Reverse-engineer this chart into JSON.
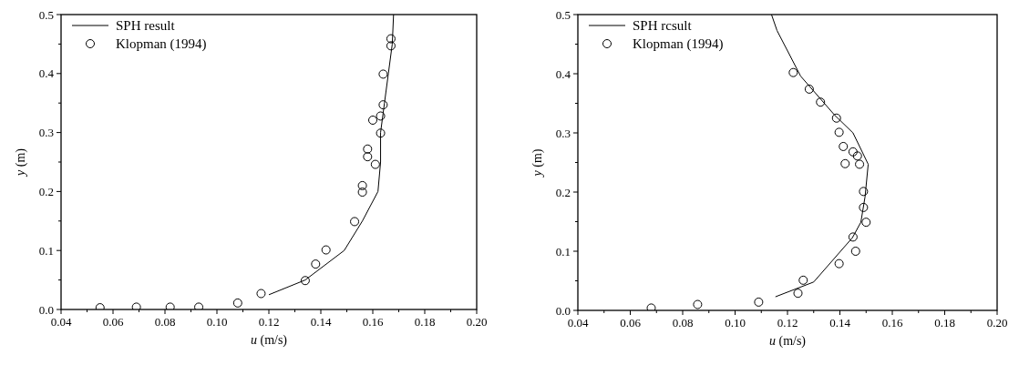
{
  "chart_data": [
    {
      "type": "line",
      "xlabel": "u (m/s)",
      "ylabel": "y (m)",
      "xlim": [
        0.04,
        0.2
      ],
      "ylim": [
        0,
        0.5
      ],
      "xticks": [
        {
          "value": 0.04,
          "label": "0.04"
        },
        {
          "value": 0.05,
          "label": null
        },
        {
          "value": 0.06,
          "label": "0.06"
        },
        {
          "value": 0.07,
          "label": null
        },
        {
          "value": 0.08,
          "label": "0.08"
        },
        {
          "value": 0.09,
          "label": null
        },
        {
          "value": 0.1,
          "label": "0.10"
        },
        {
          "value": 0.11,
          "label": null
        },
        {
          "value": 0.12,
          "label": "0.12"
        },
        {
          "value": 0.13,
          "label": null
        },
        {
          "value": 0.14,
          "label": "0.14"
        },
        {
          "value": 0.15,
          "label": null
        },
        {
          "value": 0.16,
          "label": "0.16"
        },
        {
          "value": 0.17,
          "label": null
        },
        {
          "value": 0.18,
          "label": "0.18"
        },
        {
          "value": 0.19,
          "label": null
        },
        {
          "value": 0.2,
          "label": "0.20"
        }
      ],
      "yticks": [
        {
          "value": 0,
          "label": "0.0"
        },
        {
          "value": 0.05,
          "label": null
        },
        {
          "value": 0.1,
          "label": "0.1"
        },
        {
          "value": 0.15,
          "label": null
        },
        {
          "value": 0.2,
          "label": "0.2"
        },
        {
          "value": 0.25,
          "label": null
        },
        {
          "value": 0.3,
          "label": "0.3"
        },
        {
          "value": 0.35,
          "label": null
        },
        {
          "value": 0.4,
          "label": "0.4"
        },
        {
          "value": 0.45,
          "label": null
        },
        {
          "value": 0.5,
          "label": "0.5"
        }
      ],
      "legend": "top left",
      "grid": false,
      "series": [
        {
          "name": "SPH result",
          "color": "#000000",
          "line_style": "solid",
          "x": [
            0.12,
            0.134,
            0.149,
            0.156,
            0.162,
            0.163,
            0.163,
            0.1645,
            0.166,
            0.1675,
            0.168
          ],
          "values": [
            0.025,
            0.05,
            0.1,
            0.15,
            0.2,
            0.25,
            0.3,
            0.35,
            0.4,
            0.45,
            0.5
          ]
        },
        {
          "name": "Klopman (1994)",
          "type": "scatter",
          "color": "#000000",
          "marker": "circle",
          "x": [
            0.055,
            0.069,
            0.082,
            0.093,
            0.108,
            0.117,
            0.134,
            0.138,
            0.142,
            0.153,
            0.156,
            0.156,
            0.158,
            0.158,
            0.161,
            0.163,
            0.16,
            0.163,
            0.164,
            0.164,
            0.167,
            0.167
          ],
          "values": [
            0.003,
            0.004,
            0.004,
            0.004,
            0.011,
            0.027,
            0.049,
            0.077,
            0.101,
            0.149,
            0.199,
            0.21,
            0.259,
            0.272,
            0.246,
            0.299,
            0.321,
            0.328,
            0.347,
            0.399,
            0.447,
            0.459
          ]
        }
      ]
    },
    {
      "type": "line",
      "xlabel": "u (m/s)",
      "ylabel": "y (m)",
      "xlim": [
        0.04,
        0.2
      ],
      "ylim": [
        0,
        0.5
      ],
      "xticks": [
        {
          "value": 0.04,
          "label": "0.04"
        },
        {
          "value": 0.05,
          "label": null
        },
        {
          "value": 0.06,
          "label": "0.06"
        },
        {
          "value": 0.07,
          "label": null
        },
        {
          "value": 0.08,
          "label": "0.08"
        },
        {
          "value": 0.09,
          "label": null
        },
        {
          "value": 0.1,
          "label": "0.10"
        },
        {
          "value": 0.11,
          "label": null
        },
        {
          "value": 0.12,
          "label": "0.12"
        },
        {
          "value": 0.13,
          "label": null
        },
        {
          "value": 0.14,
          "label": "0.14"
        },
        {
          "value": 0.15,
          "label": null
        },
        {
          "value": 0.16,
          "label": "0.16"
        },
        {
          "value": 0.17,
          "label": null
        },
        {
          "value": 0.18,
          "label": "0.18"
        },
        {
          "value": 0.19,
          "label": null
        },
        {
          "value": 0.2,
          "label": "0.20"
        }
      ],
      "yticks": [
        {
          "value": 0,
          "label": "0.0"
        },
        {
          "value": 0.05,
          "label": null
        },
        {
          "value": 0.1,
          "label": "0.1"
        },
        {
          "value": 0.15,
          "label": null
        },
        {
          "value": 0.2,
          "label": "0.2"
        },
        {
          "value": 0.25,
          "label": null
        },
        {
          "value": 0.3,
          "label": "0.3"
        },
        {
          "value": 0.35,
          "label": null
        },
        {
          "value": 0.4,
          "label": "0.4"
        },
        {
          "value": 0.45,
          "label": null
        },
        {
          "value": 0.5,
          "label": "0.5"
        }
      ],
      "legend": "top left",
      "grid": false,
      "series": [
        {
          "name": "SPH rcsult",
          "color": "#000000",
          "line_style": "solid",
          "x": [
            0.1154,
            0.13,
            0.1448,
            0.148,
            0.1496,
            0.1508,
            0.145,
            0.138,
            0.125,
            0.116,
            0.1139
          ],
          "values": [
            0.023,
            0.048,
            0.123,
            0.149,
            0.192,
            0.247,
            0.3,
            0.33,
            0.396,
            0.473,
            0.5
          ]
        },
        {
          "name": "Klopman (1994)",
          "type": "scatter",
          "color": "#000000",
          "marker": "circle",
          "x": [
            0.068,
            0.0857,
            0.109,
            0.124,
            0.126,
            0.1397,
            0.146,
            0.145,
            0.15,
            0.149,
            0.149,
            0.142,
            0.1475,
            0.1467,
            0.145,
            0.1413,
            0.1397,
            0.1387,
            0.1326,
            0.1283,
            0.1222
          ],
          "values": [
            0.004,
            0.01,
            0.014,
            0.029,
            0.051,
            0.079,
            0.1,
            0.124,
            0.149,
            0.174,
            0.201,
            0.248,
            0.247,
            0.261,
            0.268,
            0.277,
            0.301,
            0.325,
            0.352,
            0.374,
            0.402
          ]
        }
      ]
    }
  ]
}
